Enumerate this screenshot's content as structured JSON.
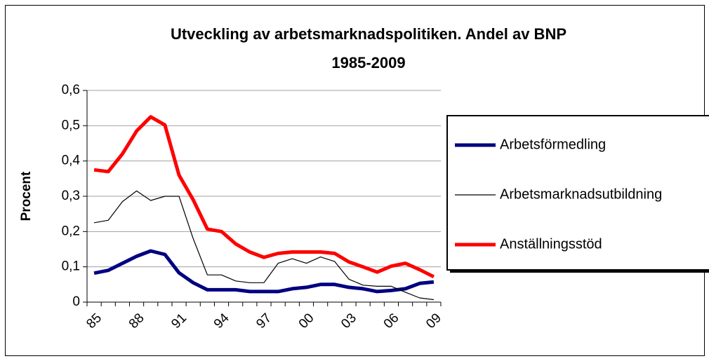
{
  "chart_data": {
    "type": "line",
    "title_lines": [
      "Utveckling av arbetsmarknadspolitiken. Andel av BNP",
      "1985-2009"
    ],
    "y_label": "Procent",
    "categories": [
      "85",
      null,
      null,
      "88",
      null,
      null,
      "91",
      null,
      null,
      "94",
      null,
      null,
      "97",
      null,
      null,
      "00",
      null,
      null,
      "03",
      null,
      null,
      "06",
      null,
      null,
      "09"
    ],
    "series": [
      {
        "name": "Arbetsförmedling",
        "color": "#000080",
        "width": 5,
        "values": [
          0.082,
          0.09,
          0.11,
          0.13,
          0.145,
          0.135,
          0.083,
          0.055,
          0.035,
          0.035,
          0.035,
          0.03,
          0.03,
          0.03,
          0.038,
          0.042,
          0.05,
          0.05,
          0.042,
          0.038,
          0.03,
          0.033,
          0.038,
          0.053,
          0.057
        ]
      },
      {
        "name": "Arbetsmarknadsutbildning",
        "color": "#000000",
        "width": 1.2,
        "values": [
          0.225,
          0.232,
          0.285,
          0.315,
          0.288,
          0.3,
          0.3,
          0.18,
          0.077,
          0.077,
          0.06,
          0.055,
          0.055,
          0.11,
          0.123,
          0.11,
          0.128,
          0.115,
          0.065,
          0.048,
          0.045,
          0.045,
          0.028,
          0.012,
          0.007
        ]
      },
      {
        "name": "Anställningsstöd",
        "color": "#ff0000",
        "width": 5,
        "values": [
          0.375,
          0.37,
          0.42,
          0.485,
          0.525,
          0.502,
          0.36,
          0.29,
          0.207,
          0.2,
          0.165,
          0.142,
          0.127,
          0.138,
          0.142,
          0.142,
          0.142,
          0.138,
          0.114,
          0.1,
          0.085,
          0.102,
          0.11,
          0.092,
          0.072
        ]
      }
    ],
    "ylim": [
      0,
      0.6
    ],
    "yticks": [
      0,
      {
        "value": 0.1,
        "label": "0,1"
      },
      {
        "value": 0.2,
        "label": "0,2"
      },
      {
        "value": 0.3,
        "label": "0,3"
      },
      {
        "value": 0.4,
        "label": "0,4"
      },
      {
        "value": 0.5,
        "label": "0,5"
      },
      {
        "value": 0.6,
        "label": "0,6"
      }
    ],
    "grid": true,
    "legend": "right"
  }
}
